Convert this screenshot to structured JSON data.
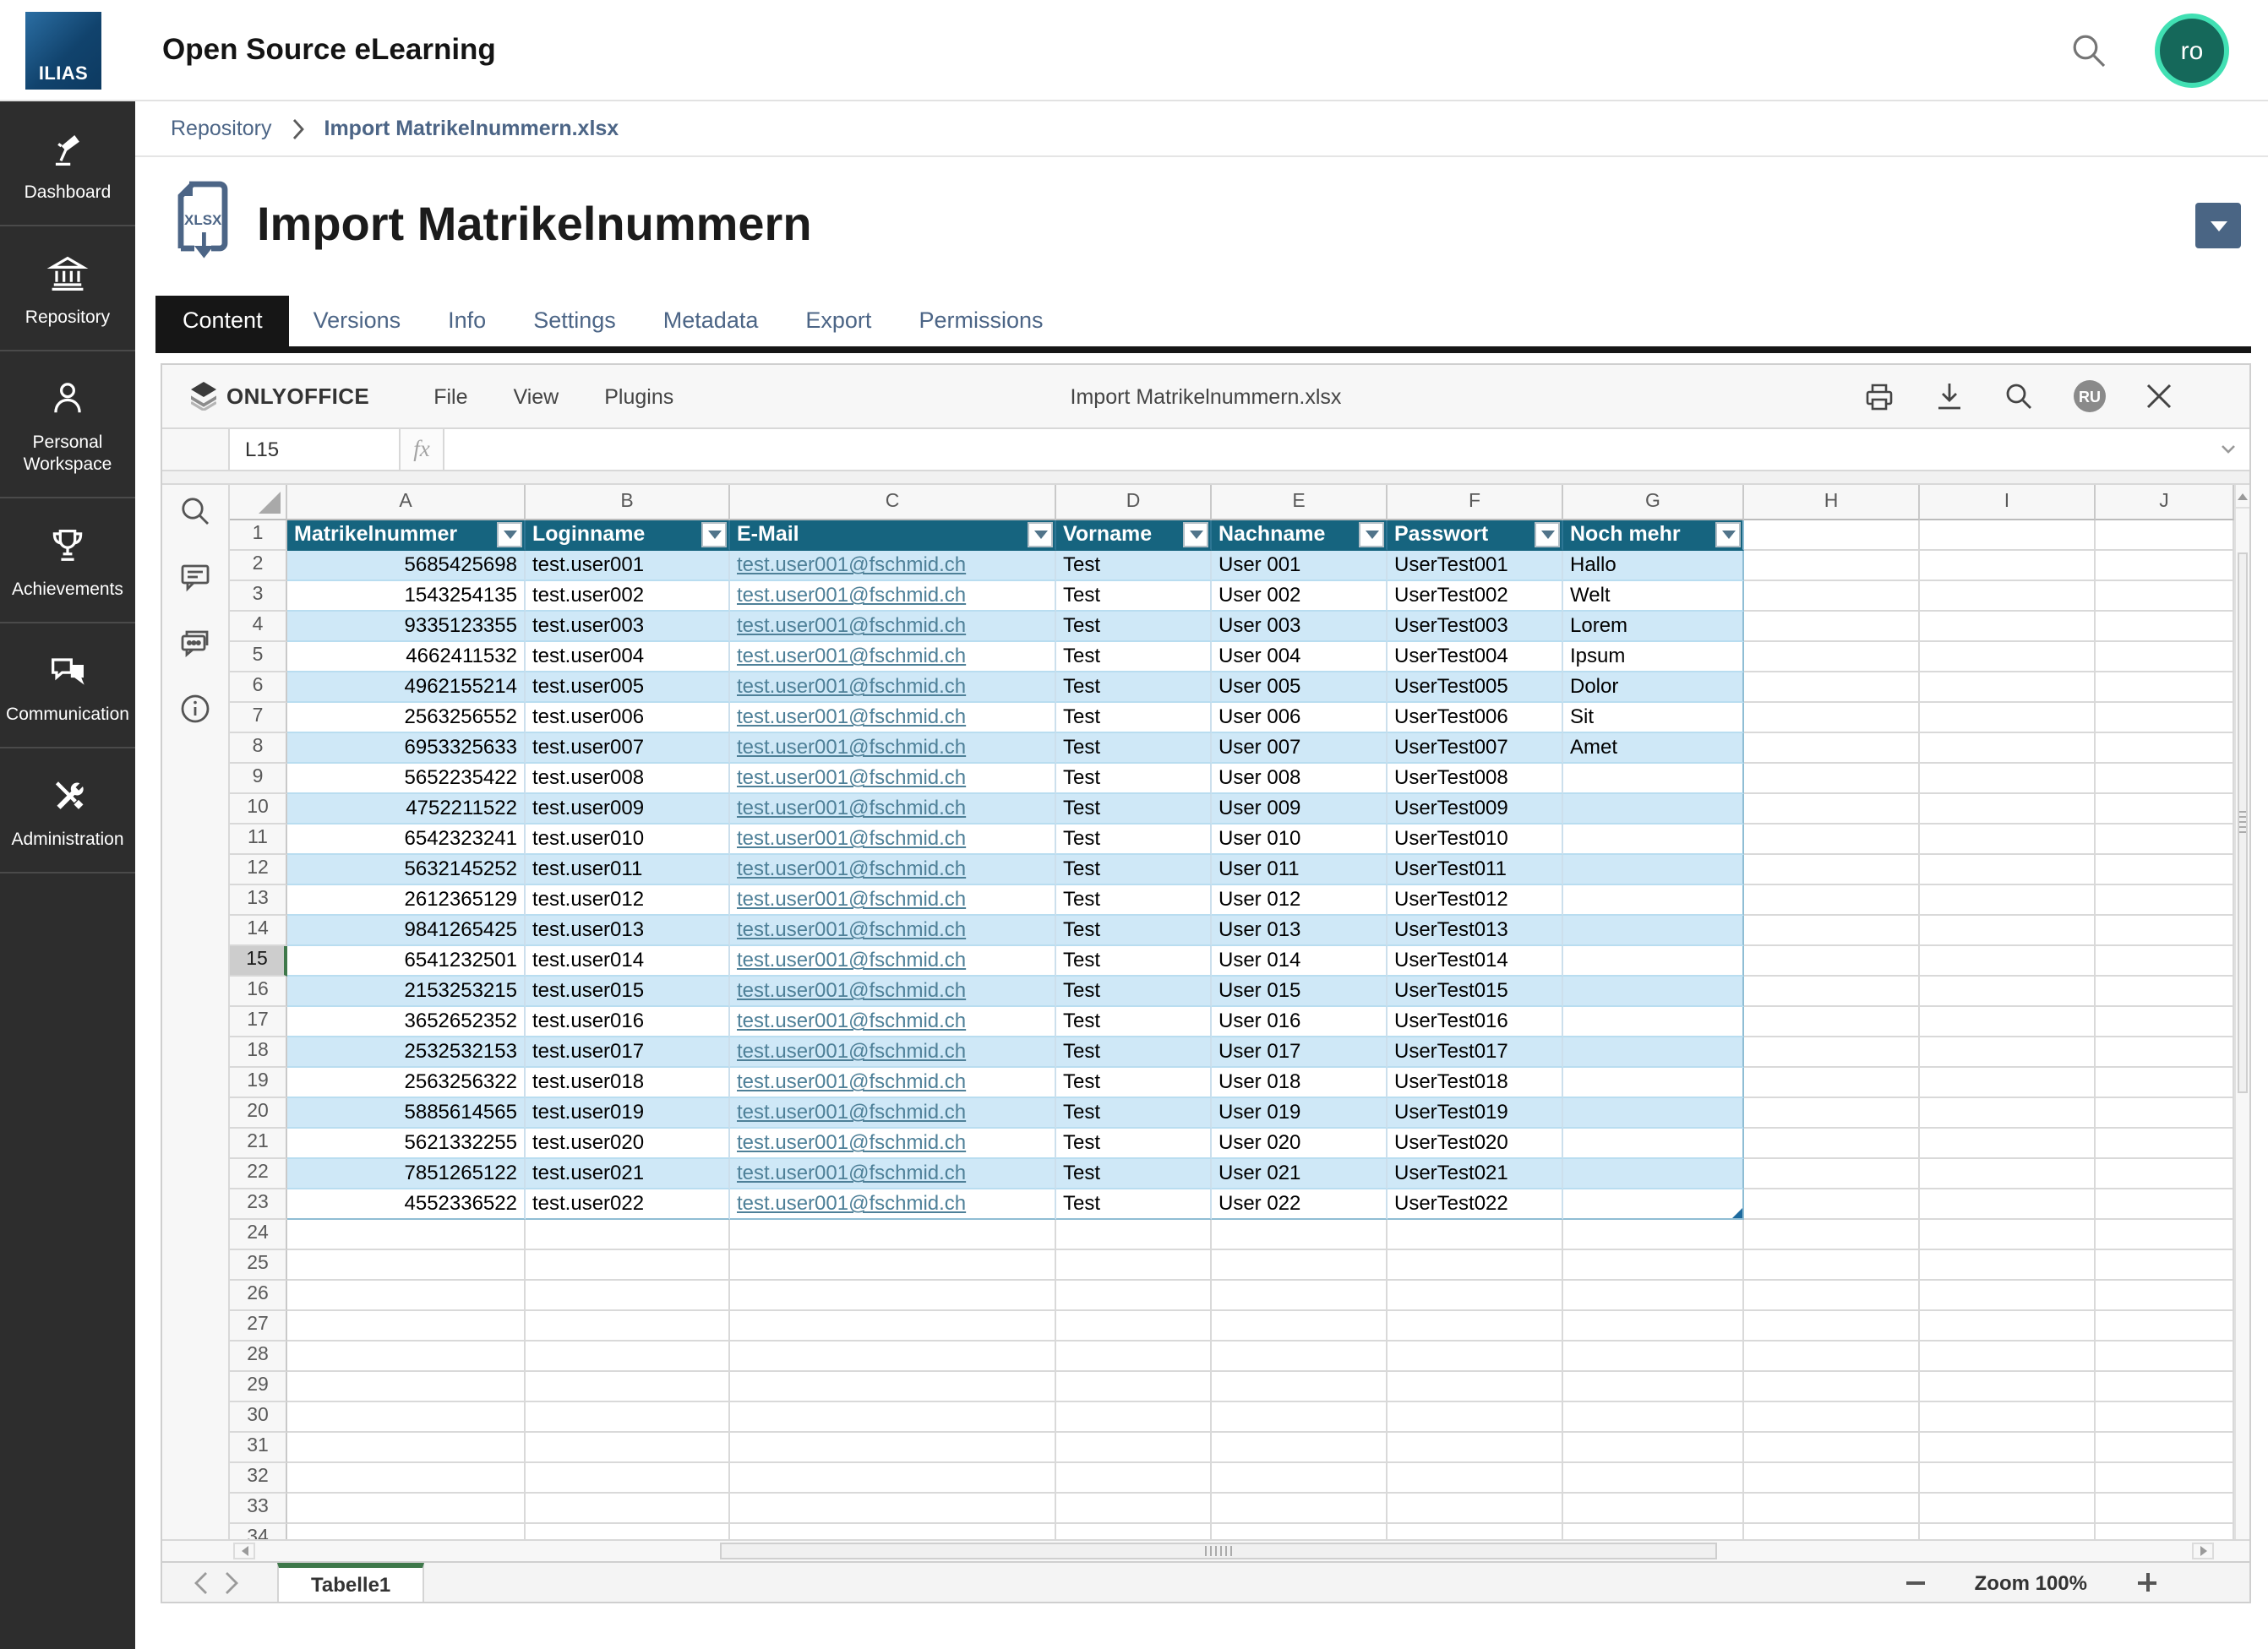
{
  "topbar": {
    "logo_text": "ILIAS",
    "app_title": "Open Source eLearning",
    "avatar_initials": "ro"
  },
  "sidebar": {
    "items": [
      {
        "label": "Dashboard",
        "icon": "dashboard-icon"
      },
      {
        "label": "Repository",
        "icon": "repository-icon"
      },
      {
        "label": "Personal Workspace",
        "icon": "personal-workspace-icon"
      },
      {
        "label": "Achievements",
        "icon": "achievements-icon"
      },
      {
        "label": "Communication",
        "icon": "communication-icon"
      },
      {
        "label": "Administration",
        "icon": "administration-icon"
      }
    ]
  },
  "breadcrumb": {
    "root": "Repository",
    "current": "Import Matrikelnummern.xlsx"
  },
  "page": {
    "title": "Import Matrikelnummern",
    "file_badge": "XLSX"
  },
  "tabs": [
    {
      "label": "Content",
      "active": true
    },
    {
      "label": "Versions",
      "active": false
    },
    {
      "label": "Info",
      "active": false
    },
    {
      "label": "Settings",
      "active": false
    },
    {
      "label": "Metadata",
      "active": false
    },
    {
      "label": "Export",
      "active": false
    },
    {
      "label": "Permissions",
      "active": false
    }
  ],
  "office": {
    "brand": "ONLYOFFICE",
    "menus": [
      "File",
      "View",
      "Plugins"
    ],
    "doc_title": "Import Matrikelnummern.xlsx",
    "user_initials": "RU",
    "name_box": "L15",
    "fx_label": "fx",
    "sheet_tab": "Tabelle1",
    "zoom_label": "Zoom 100%"
  },
  "spreadsheet": {
    "col_letters": [
      "A",
      "B",
      "C",
      "D",
      "E",
      "F",
      "G",
      "H",
      "I",
      "J"
    ],
    "row_count": 34,
    "selected_cell": "L15",
    "selected_row": 15,
    "headers": [
      "Matrikelnummer",
      "Loginname",
      "E-Mail",
      "Vorname",
      "Nachname",
      "Passwort",
      "Noch mehr"
    ],
    "rows": [
      [
        "5685425698",
        "test.user001",
        "test.user001@fschmid.ch",
        "Test",
        "User 001",
        "UserTest001",
        "Hallo"
      ],
      [
        "1543254135",
        "test.user002",
        "test.user001@fschmid.ch",
        "Test",
        "User 002",
        "UserTest002",
        "Welt"
      ],
      [
        "9335123355",
        "test.user003",
        "test.user001@fschmid.ch",
        "Test",
        "User 003",
        "UserTest003",
        "Lorem"
      ],
      [
        "4662411532",
        "test.user004",
        "test.user001@fschmid.ch",
        "Test",
        "User 004",
        "UserTest004",
        "Ipsum"
      ],
      [
        "4962155214",
        "test.user005",
        "test.user001@fschmid.ch",
        "Test",
        "User 005",
        "UserTest005",
        "Dolor"
      ],
      [
        "2563256552",
        "test.user006",
        "test.user001@fschmid.ch",
        "Test",
        "User 006",
        "UserTest006",
        "Sit"
      ],
      [
        "6953325633",
        "test.user007",
        "test.user001@fschmid.ch",
        "Test",
        "User 007",
        "UserTest007",
        "Amet"
      ],
      [
        "5652235422",
        "test.user008",
        "test.user001@fschmid.ch",
        "Test",
        "User 008",
        "UserTest008",
        ""
      ],
      [
        "4752211522",
        "test.user009",
        "test.user001@fschmid.ch",
        "Test",
        "User 009",
        "UserTest009",
        ""
      ],
      [
        "6542323241",
        "test.user010",
        "test.user001@fschmid.ch",
        "Test",
        "User 010",
        "UserTest010",
        ""
      ],
      [
        "5632145252",
        "test.user011",
        "test.user001@fschmid.ch",
        "Test",
        "User 011",
        "UserTest011",
        ""
      ],
      [
        "2612365129",
        "test.user012",
        "test.user001@fschmid.ch",
        "Test",
        "User 012",
        "UserTest012",
        ""
      ],
      [
        "9841265425",
        "test.user013",
        "test.user001@fschmid.ch",
        "Test",
        "User 013",
        "UserTest013",
        ""
      ],
      [
        "6541232501",
        "test.user014",
        "test.user001@fschmid.ch",
        "Test",
        "User 014",
        "UserTest014",
        ""
      ],
      [
        "2153253215",
        "test.user015",
        "test.user001@fschmid.ch",
        "Test",
        "User 015",
        "UserTest015",
        ""
      ],
      [
        "3652652352",
        "test.user016",
        "test.user001@fschmid.ch",
        "Test",
        "User 016",
        "UserTest016",
        ""
      ],
      [
        "2532532153",
        "test.user017",
        "test.user001@fschmid.ch",
        "Test",
        "User 017",
        "UserTest017",
        ""
      ],
      [
        "2563256322",
        "test.user018",
        "test.user001@fschmid.ch",
        "Test",
        "User 018",
        "UserTest018",
        ""
      ],
      [
        "5885614565",
        "test.user019",
        "test.user001@fschmid.ch",
        "Test",
        "User 019",
        "UserTest019",
        ""
      ],
      [
        "5621332255",
        "test.user020",
        "test.user001@fschmid.ch",
        "Test",
        "User 020",
        "UserTest020",
        ""
      ],
      [
        "7851265122",
        "test.user021",
        "test.user001@fschmid.ch",
        "Test",
        "User 021",
        "UserTest021",
        ""
      ],
      [
        "4552336522",
        "test.user022",
        "test.user001@fschmid.ch",
        "Test",
        "User 022",
        "UserTest022",
        ""
      ]
    ]
  }
}
